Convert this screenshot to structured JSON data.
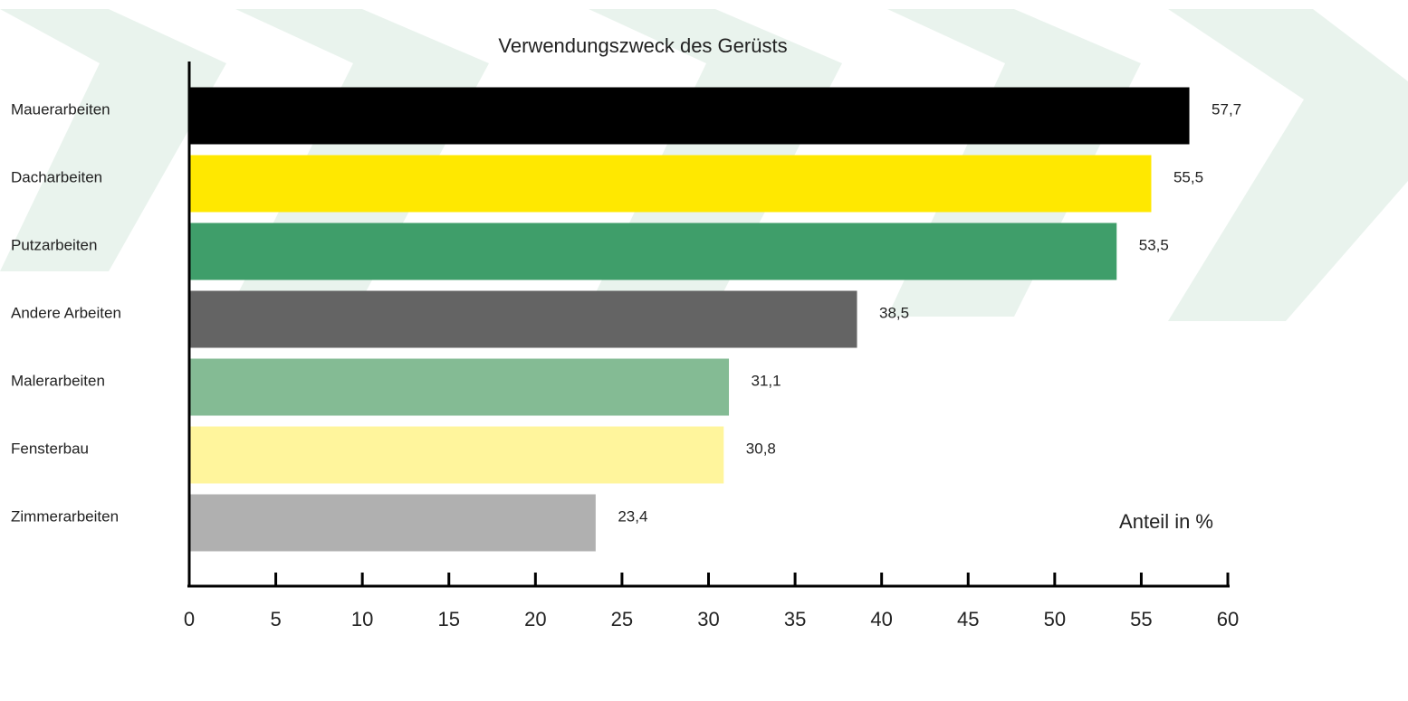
{
  "chart_data": {
    "type": "barh",
    "title": "Verwendungszweck des Gerüsts",
    "categories": [
      "Mauerarbeiten",
      "Dacharbeiten",
      "Putzarbeiten",
      "Andere Arbeiten",
      "Malerarbeiten",
      "Fensterbau",
      "Zimmerarbeiten"
    ],
    "values": [
      57.7,
      55.5,
      53.5,
      38.5,
      31.1,
      30.8,
      23.4
    ],
    "value_labels": [
      "57,7",
      "55,5",
      "53,5",
      "38,5",
      "31,1",
      "30,8",
      "23,4"
    ],
    "colors": [
      "#000000",
      "#ffe800",
      "#3f9e6a",
      "#646464",
      "#84bb94",
      "#fff59c",
      "#b0b0b0"
    ],
    "xlabel": "Anteil in %",
    "xlim": [
      0,
      60
    ],
    "xticks": [
      0,
      5,
      10,
      15,
      20,
      25,
      30,
      35,
      40,
      45,
      50,
      55,
      60
    ]
  }
}
